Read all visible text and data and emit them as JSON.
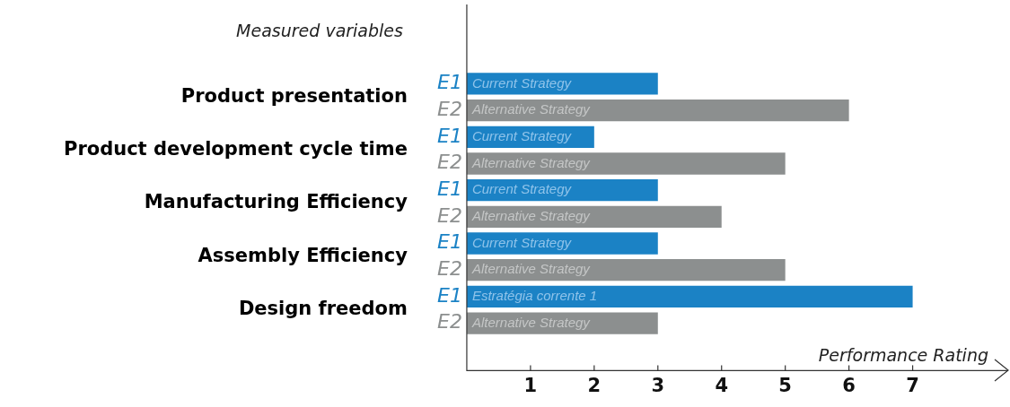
{
  "chart_data": {
    "type": "bar",
    "orientation": "horizontal",
    "xlabel": "Performance Rating",
    "ylabel": "Measured variables",
    "categories": [
      "Product presentation",
      "Product development cycle time",
      "Manufacturing Efficiency",
      "Assembly Efficiency",
      "Design freedom"
    ],
    "series": [
      {
        "name": "E1",
        "color": "#1b82c5",
        "values": [
          3,
          2,
          3,
          3,
          7
        ]
      },
      {
        "name": "E2",
        "color": "#8c8f8f",
        "values": [
          6,
          5,
          4,
          5,
          3
        ]
      }
    ],
    "xlim": [
      0,
      8.5
    ],
    "xticks": [
      1,
      2,
      3,
      4,
      5,
      6,
      7
    ],
    "grid": false,
    "legend": false,
    "annotations": [
      "Current Strategy",
      "Alternative Strategy",
      "Current Strategy",
      "Alternative Strategy",
      "Current Strategy",
      "Alternative Strategy",
      "Current Strategy",
      "Alternative Strategy",
      "Estratégia corrente 1",
      "Alternative Strategy"
    ]
  }
}
